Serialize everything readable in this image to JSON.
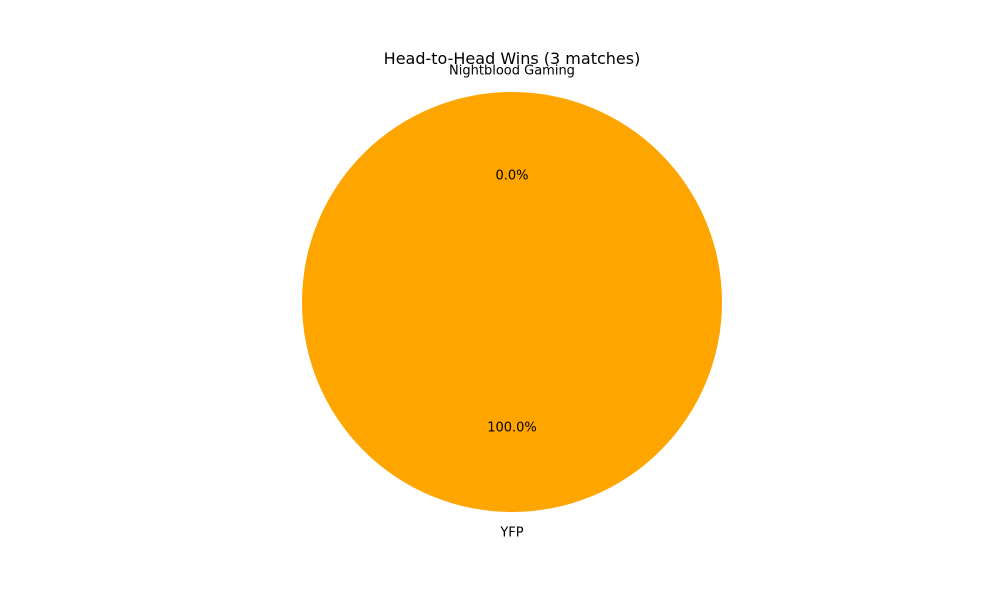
{
  "chart_data": {
    "type": "pie",
    "title": "Head-to-Head Wins (3 matches)",
    "slices": [
      {
        "label": "Nightblood Gaming",
        "value": 0,
        "pct_label": "0.0%",
        "color": "#add8e6"
      },
      {
        "label": "YFP",
        "value": 3,
        "pct_label": "100.0%",
        "color": "#ffa500"
      }
    ],
    "start_angle_deg": 90,
    "counterclockwise": true
  }
}
